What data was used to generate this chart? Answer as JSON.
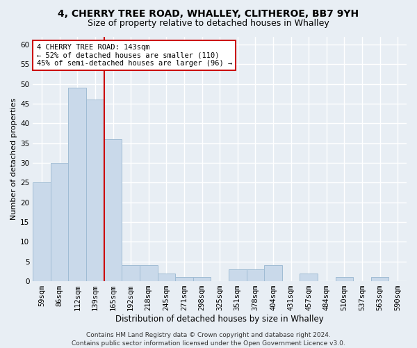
{
  "title1": "4, CHERRY TREE ROAD, WHALLEY, CLITHEROE, BB7 9YH",
  "title2": "Size of property relative to detached houses in Whalley",
  "xlabel": "Distribution of detached houses by size in Whalley",
  "ylabel": "Number of detached properties",
  "categories": [
    "59sqm",
    "86sqm",
    "112sqm",
    "139sqm",
    "165sqm",
    "192sqm",
    "218sqm",
    "245sqm",
    "271sqm",
    "298sqm",
    "325sqm",
    "351sqm",
    "378sqm",
    "404sqm",
    "431sqm",
    "457sqm",
    "484sqm",
    "510sqm",
    "537sqm",
    "563sqm",
    "590sqm"
  ],
  "values": [
    25,
    30,
    49,
    46,
    36,
    4,
    4,
    2,
    1,
    1,
    0,
    3,
    3,
    4,
    0,
    2,
    0,
    1,
    0,
    1,
    0
  ],
  "bar_color": "#c9d9ea",
  "bar_edge_color": "#a0bcd4",
  "vline_x_index": 3,
  "vline_color": "#cc0000",
  "annotation_text": "4 CHERRY TREE ROAD: 143sqm\n← 52% of detached houses are smaller (110)\n45% of semi-detached houses are larger (96) →",
  "annotation_box_color": "white",
  "annotation_box_edge": "#cc0000",
  "ylim": [
    0,
    62
  ],
  "yticks": [
    0,
    5,
    10,
    15,
    20,
    25,
    30,
    35,
    40,
    45,
    50,
    55,
    60
  ],
  "footer": "Contains HM Land Registry data © Crown copyright and database right 2024.\nContains public sector information licensed under the Open Government Licence v3.0.",
  "bg_color": "#e8eef4",
  "plot_bg_color": "#e8eef4",
  "grid_color": "#ffffff",
  "title1_fontsize": 10,
  "title2_fontsize": 9,
  "xlabel_fontsize": 8.5,
  "ylabel_fontsize": 8,
  "footer_fontsize": 6.5,
  "tick_fontsize": 7.5,
  "annot_fontsize": 7.5
}
